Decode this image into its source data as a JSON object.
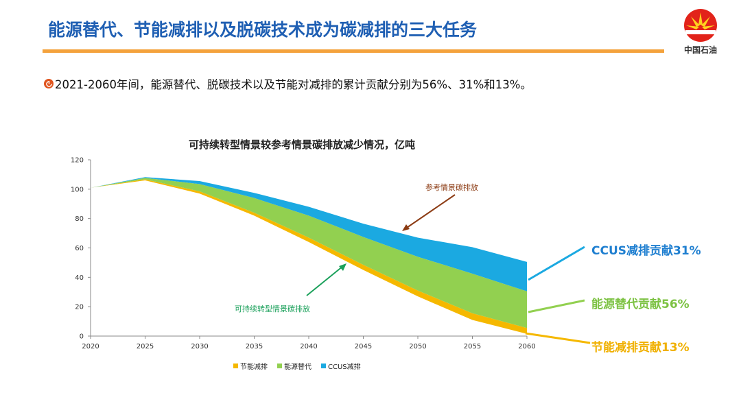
{
  "header": {
    "title": "能源替代、节能减排以及脱碳技术成为碳减排的三大任务",
    "logo_text": "中国石油",
    "logo_icon": "petrochina-sunflower-icon"
  },
  "bullet": {
    "icon": "bullet-circle-icon",
    "text": "2021-2060年间，能源替代、脱碳技术以及节能对减排的累计贡献分别为56%、31%和13%。"
  },
  "colors": {
    "title": "#1f5fb3",
    "rule": "#f4a23c",
    "energy_saving": "#f5b800",
    "energy_substitution": "#92d050",
    "ccus": "#1ba9e1",
    "green_arrow": "#1aa05a",
    "brown_arrow": "#8b3a12"
  },
  "annotations": {
    "reference": "参考情景碳排放",
    "sustainable": "可持续转型情景碳排放",
    "ccus_contrib": "CCUS减排贡献31%",
    "substitution_contrib": "能源替代贡献56%",
    "saving_contrib": "节能减排贡献13%"
  },
  "chart_data": {
    "type": "area",
    "title": "可持续转型情景较参考情景碳排放减少情况，亿吨",
    "x": [
      2020,
      2025,
      2030,
      2035,
      2040,
      2045,
      2050,
      2055,
      2060
    ],
    "ylim": [
      0,
      120
    ],
    "yticks": [
      0,
      20,
      40,
      60,
      80,
      100,
      120
    ],
    "stacked": true,
    "legend_position": "bottom",
    "sustainable_emissions": [
      101,
      106,
      97,
      82,
      64,
      45,
      27,
      11,
      1.5
    ],
    "series": [
      {
        "name": "节能减排",
        "values": [
          0,
          0.7,
          1.5,
          2,
          3,
          3.5,
          4,
          4.5,
          4
        ]
      },
      {
        "name": "能源替代",
        "values": [
          0,
          1,
          5,
          10,
          15,
          19,
          23,
          27,
          25
        ]
      },
      {
        "name": "CCUS减排",
        "values": [
          0,
          0.5,
          2,
          3.5,
          6,
          9,
          13,
          18,
          20
        ]
      }
    ]
  }
}
